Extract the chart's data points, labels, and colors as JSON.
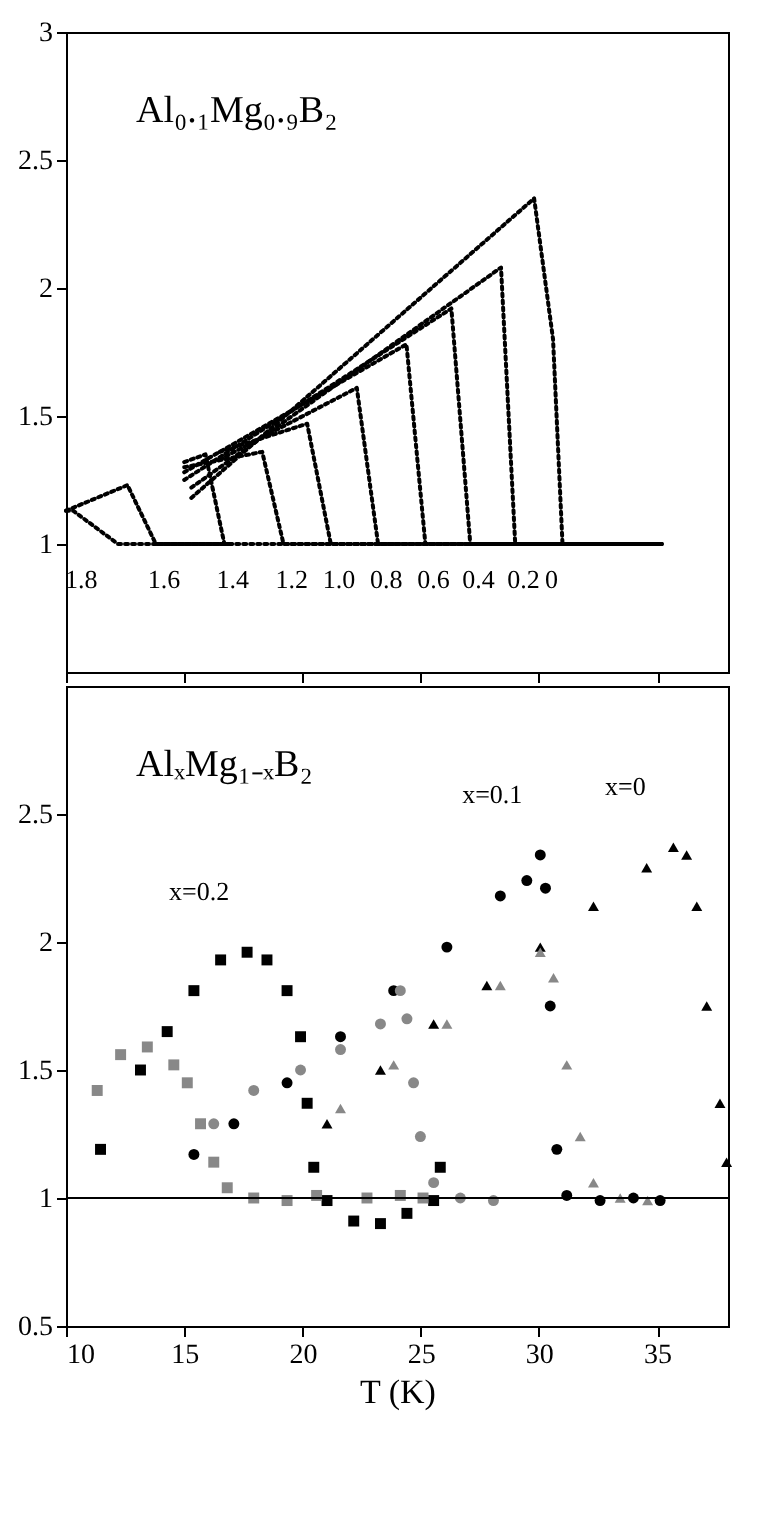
{
  "chart_data": [
    {
      "type": "line",
      "title": "Al₀.₁Mg₀.₉B₂",
      "line_style": "dotted",
      "xlim": [
        10,
        38
      ],
      "ylim": [
        0.5,
        3
      ],
      "xticks": [
        10,
        15,
        20,
        25,
        30,
        35
      ],
      "yticks": [
        1,
        1.5,
        2,
        2.5,
        3
      ],
      "tick_labels": "y",
      "grid": false,
      "series": [
        {
          "name": "0",
          "color": "#000000",
          "x": [
            15.3,
            29.8,
            30.6,
            31.0,
            35.2
          ],
          "values": [
            1.18,
            2.35,
            1.8,
            1.0,
            1.0
          ]
        },
        {
          "name": "0.2",
          "color": "#000000",
          "x": [
            15.3,
            28.4,
            29.0,
            35.2
          ],
          "values": [
            1.22,
            2.08,
            1.0,
            1.0
          ]
        },
        {
          "name": "0.4",
          "color": "#000000",
          "x": [
            15.0,
            26.3,
            27.1,
            35.2
          ],
          "values": [
            1.25,
            1.92,
            1.0,
            1.0
          ]
        },
        {
          "name": "0.6",
          "color": "#000000",
          "x": [
            15.0,
            24.4,
            25.2,
            35.2
          ],
          "values": [
            1.28,
            1.78,
            1.0,
            1.0
          ]
        },
        {
          "name": "0.8",
          "color": "#000000",
          "x": [
            16.5,
            22.3,
            23.2,
            35.2
          ],
          "values": [
            1.33,
            1.61,
            1.0,
            1.0
          ]
        },
        {
          "name": "1.0",
          "color": "#000000",
          "x": [
            16.5,
            20.2,
            21.2,
            35.2
          ],
          "values": [
            1.36,
            1.47,
            1.0,
            1.0
          ]
        },
        {
          "name": "1.2",
          "color": "#000000",
          "x": [
            15.0,
            18.3,
            19.2,
            35.2
          ],
          "values": [
            1.3,
            1.36,
            1.0,
            1.0
          ]
        },
        {
          "name": "1.4",
          "color": "#000000",
          "x": [
            15.0,
            15.9,
            16.7,
            24.0
          ],
          "values": [
            1.32,
            1.35,
            1.0,
            1.0
          ]
        },
        {
          "name": "1.6",
          "color": "#000000",
          "x": [
            10.0,
            12.6,
            13.8,
            17.0
          ],
          "values": [
            1.13,
            1.23,
            1.0,
            1.0
          ]
        },
        {
          "name": "1.8",
          "color": "#000000",
          "x": [
            10.0,
            10.3,
            12.2,
            17.0
          ],
          "values": [
            1.13,
            1.13,
            1.0,
            1.0
          ]
        }
      ]
    },
    {
      "type": "scatter",
      "title": "AlₓMg₁₋ₓB₂",
      "xlabel": "T (K)",
      "xlim": [
        10,
        38
      ],
      "ylim": [
        0.5,
        3
      ],
      "xticks": [
        10,
        15,
        20,
        25,
        30,
        35
      ],
      "yticks": [
        0.5,
        1,
        1.5,
        2,
        2.5
      ],
      "grid": false,
      "ref_lines": [
        {
          "axis": "y",
          "value": 1,
          "color": "#000000"
        }
      ],
      "series": [
        {
          "name": "x=0.2",
          "color": "#000000",
          "marker": "square",
          "x": [
            11.46,
            13.15,
            14.28,
            15.41,
            16.54,
            17.66,
            18.5,
            19.35,
            19.92,
            20.2,
            20.48,
            21.04,
            22.17,
            23.3,
            24.42,
            25.55,
            25.83
          ],
          "values": [
            1.19,
            1.5,
            1.65,
            1.81,
            1.93,
            1.96,
            1.93,
            1.81,
            1.63,
            1.37,
            1.12,
            0.99,
            0.91,
            0.9,
            0.94,
            0.99,
            1.12
          ]
        },
        {
          "color": "#888888",
          "marker": "square",
          "x": [
            11.32,
            12.31,
            13.44,
            14.56,
            15.13,
            15.69,
            16.25,
            16.82,
            17.94,
            19.35,
            20.6,
            22.73,
            24.14,
            25.1
          ],
          "values": [
            1.42,
            1.56,
            1.59,
            1.52,
            1.45,
            1.29,
            1.14,
            1.04,
            1.0,
            0.99,
            1.01,
            1.0,
            1.01,
            1.0
          ]
        },
        {
          "name": "x=0.1",
          "color": "#000000",
          "marker": "circle",
          "x": [
            15.41,
            17.1,
            19.35,
            21.61,
            23.86,
            26.11,
            28.37,
            29.49,
            30.06,
            30.28,
            30.48,
            30.76,
            31.18,
            32.59,
            34.0,
            35.13
          ],
          "values": [
            1.17,
            1.29,
            1.45,
            1.63,
            1.81,
            1.98,
            2.18,
            2.24,
            2.34,
            2.21,
            1.75,
            1.19,
            1.01,
            0.99,
            1.0,
            0.99
          ]
        },
        {
          "color": "#888888",
          "marker": "circle",
          "x": [
            16.25,
            17.94,
            19.92,
            21.61,
            23.3,
            24.14,
            24.42,
            24.7,
            24.99,
            25.55,
            26.68,
            28.08
          ],
          "values": [
            1.29,
            1.42,
            1.5,
            1.58,
            1.68,
            1.81,
            1.7,
            1.45,
            1.24,
            1.06,
            1.0,
            0.99
          ]
        },
        {
          "name": "x=0",
          "color": "#000000",
          "marker": "triangle",
          "x": [
            21.04,
            23.3,
            25.55,
            27.8,
            30.06,
            32.31,
            34.56,
            35.69,
            36.25,
            36.68,
            37.1,
            37.66,
            37.94
          ],
          "values": [
            1.29,
            1.5,
            1.68,
            1.83,
            1.98,
            2.14,
            2.29,
            2.37,
            2.34,
            2.14,
            1.75,
            1.37,
            1.14
          ]
        },
        {
          "color": "#888888",
          "marker": "triangle",
          "x": [
            21.61,
            23.86,
            26.11,
            28.37,
            30.06,
            30.62,
            31.18,
            31.75,
            32.31,
            33.44,
            34.6
          ],
          "values": [
            1.35,
            1.52,
            1.68,
            1.83,
            1.96,
            1.86,
            1.52,
            1.24,
            1.06,
            1.0,
            0.99
          ]
        }
      ]
    }
  ]
}
